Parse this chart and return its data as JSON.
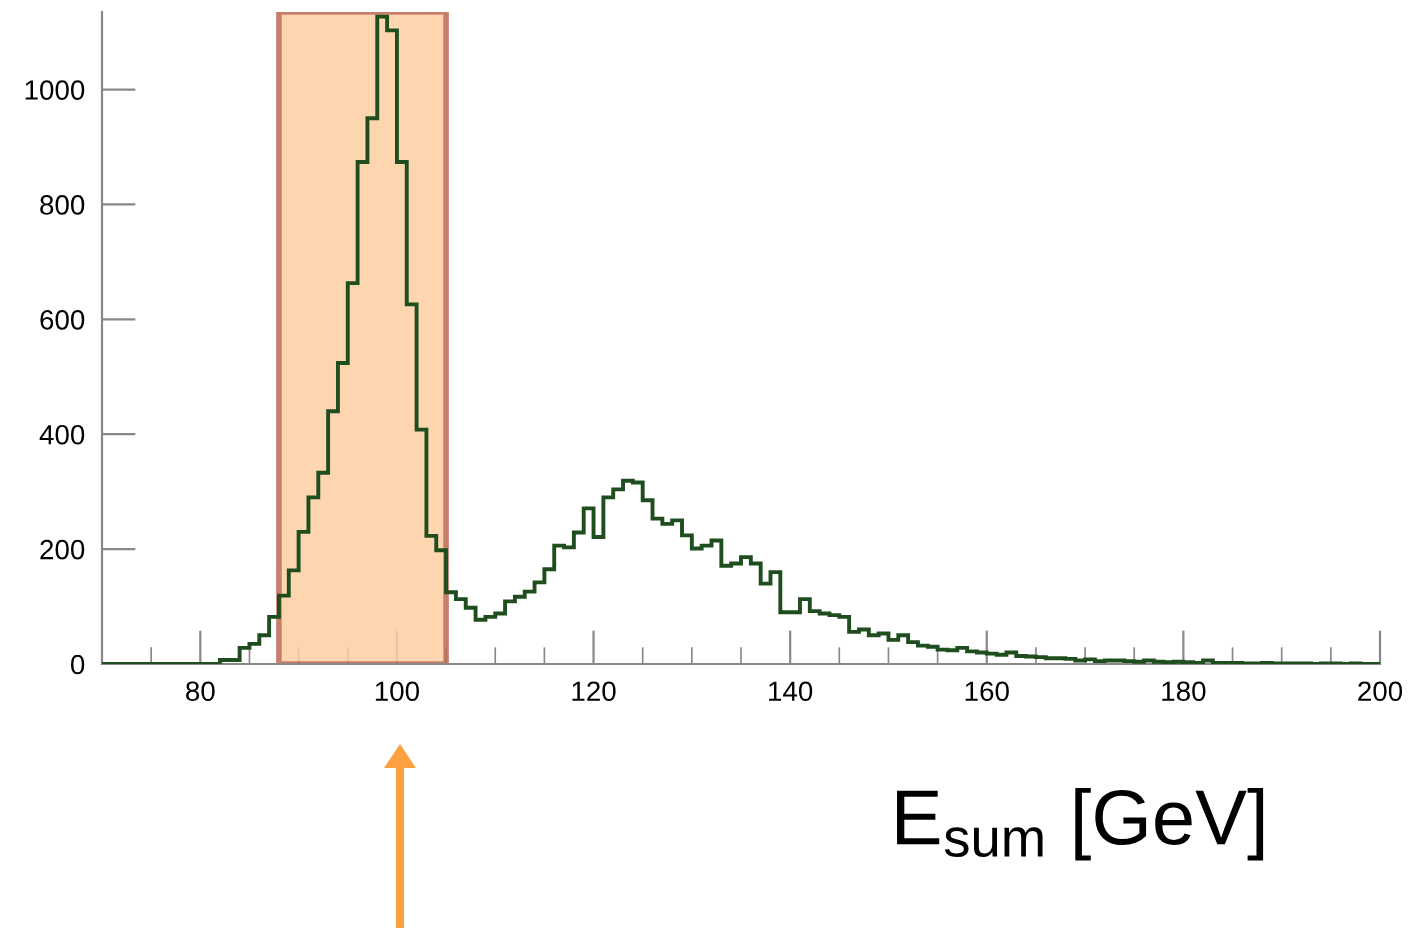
{
  "chart_data": {
    "type": "histogram",
    "xlabel": "E$_{sum}$ [GeV]",
    "bins": [
      70,
      71,
      72,
      73,
      74,
      75,
      76,
      77,
      78,
      79,
      80,
      81,
      82,
      83,
      84,
      85,
      86,
      87,
      88,
      89,
      90,
      91,
      92,
      93,
      94,
      95,
      96,
      97,
      98,
      99,
      100,
      101,
      102,
      103,
      104,
      105,
      106,
      107,
      108,
      109,
      110,
      111,
      112,
      113,
      114,
      115,
      116,
      117,
      118,
      119,
      120,
      121,
      122,
      123,
      124,
      125,
      126,
      127,
      128,
      129,
      130,
      131,
      132,
      133,
      134,
      135,
      136,
      137,
      138,
      139,
      140,
      141,
      142,
      143,
      144,
      145,
      146,
      147,
      148,
      149,
      150,
      151,
      152,
      153,
      154,
      155,
      156,
      157,
      158,
      159,
      160,
      161,
      162,
      163,
      164,
      165,
      166,
      167,
      168,
      169,
      170,
      171,
      172,
      173,
      174,
      175,
      176,
      177,
      178,
      179,
      180,
      181,
      182,
      183,
      184,
      185,
      186,
      187,
      188,
      189,
      190,
      191,
      192,
      193,
      194,
      195,
      196,
      197,
      198,
      199,
      200
    ],
    "values": [
      0,
      0,
      0,
      0,
      0,
      0,
      0,
      0,
      0,
      0,
      0,
      0,
      7,
      7,
      28,
      35,
      50,
      82,
      119,
      163,
      230,
      290,
      333,
      440,
      524,
      663,
      874,
      950,
      1127,
      1103,
      874,
      626,
      408,
      223,
      198,
      125,
      113,
      98,
      77,
      82,
      88,
      109,
      117,
      126,
      142,
      165,
      206,
      203,
      229,
      271,
      221,
      290,
      304,
      319,
      316,
      285,
      253,
      244,
      250,
      224,
      201,
      206,
      215,
      171,
      175,
      186,
      175,
      140,
      160,
      90,
      90,
      113,
      92,
      88,
      85,
      82,
      56,
      60,
      50,
      53,
      42,
      50,
      38,
      32,
      30,
      25,
      24,
      28,
      22,
      20,
      18,
      16,
      20,
      14,
      13,
      12,
      10,
      10,
      9,
      6,
      8,
      5,
      6,
      6,
      5,
      4,
      6,
      4,
      3,
      4,
      3,
      2,
      6,
      2,
      2,
      2,
      1,
      1,
      2,
      1,
      1,
      1,
      1,
      0,
      1,
      1,
      0,
      1,
      0,
      0
    ],
    "color": "#1e4d1e",
    "xlim": [
      70,
      200
    ],
    "ylim": [
      0,
      1135
    ],
    "xticks": [
      80,
      100,
      120,
      140,
      160,
      180,
      200
    ],
    "yticks": [
      0,
      200,
      400,
      600,
      800,
      1000
    ],
    "bands": [
      {
        "axis": "x",
        "from": 88,
        "to": 105,
        "color": "#fdd0a2"
      }
    ],
    "grid": false
  }
}
